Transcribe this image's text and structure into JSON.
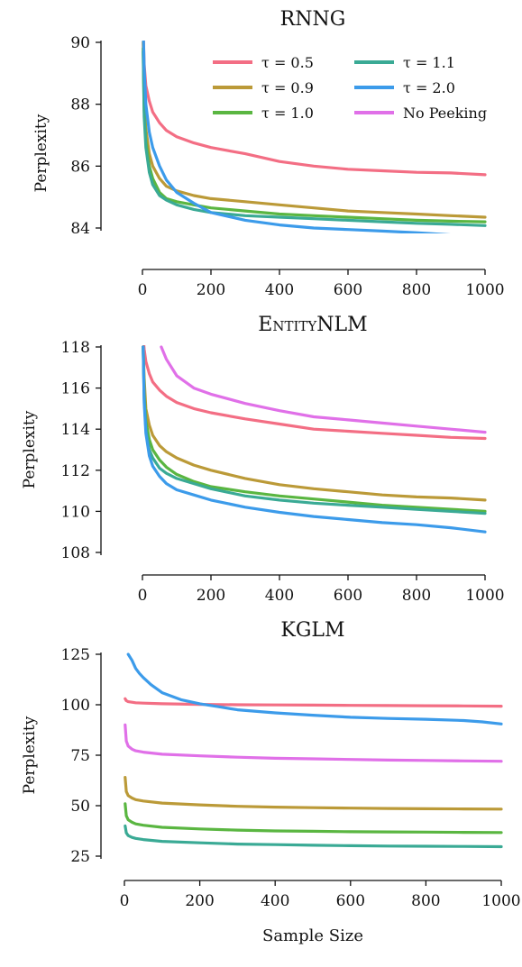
{
  "chart_data": [
    {
      "type": "line",
      "title": "RNNG",
      "ylabel": "Perplexity",
      "xlabel": "",
      "xlim": [
        0,
        1000
      ],
      "ylim": [
        84,
        90
      ],
      "xticks": [
        "0",
        "200",
        "400",
        "600",
        "800",
        "1000"
      ],
      "yticks": [
        "84",
        "86",
        "88",
        "90"
      ],
      "legend": {
        "placement": "top-right",
        "entries": [
          "τ = 0.5",
          "τ = 0.9",
          "τ = 1.0",
          "τ = 1.1",
          "τ = 2.0",
          "No Peeking"
        ]
      },
      "series": [
        {
          "name": "τ = 0.5",
          "color": "#f36e84",
          "x": [
            2,
            5,
            10,
            20,
            30,
            50,
            70,
            100,
            150,
            200,
            300,
            400,
            500,
            600,
            700,
            800,
            900,
            1000
          ],
          "y": [
            90.5,
            89.3,
            88.6,
            88.1,
            87.75,
            87.4,
            87.15,
            86.95,
            86.75,
            86.6,
            86.4,
            86.15,
            86.0,
            85.9,
            85.85,
            85.8,
            85.78,
            85.72
          ]
        },
        {
          "name": "τ = 0.9",
          "color": "#bb9a38",
          "x": [
            2,
            5,
            10,
            20,
            30,
            50,
            70,
            100,
            150,
            200,
            300,
            400,
            500,
            600,
            700,
            800,
            900,
            1000
          ],
          "y": [
            90.0,
            88.1,
            87.2,
            86.4,
            86.0,
            85.6,
            85.35,
            85.2,
            85.05,
            84.95,
            84.85,
            84.75,
            84.65,
            84.55,
            84.5,
            84.45,
            84.4,
            84.35
          ]
        },
        {
          "name": "τ = 1.0",
          "color": "#5ab641",
          "x": [
            2,
            5,
            10,
            20,
            30,
            50,
            70,
            100,
            150,
            200,
            300,
            400,
            500,
            600,
            700,
            800,
            900,
            1000
          ],
          "y": [
            89.8,
            87.8,
            86.8,
            86.0,
            85.6,
            85.15,
            84.95,
            84.85,
            84.75,
            84.65,
            84.55,
            84.45,
            84.4,
            84.35,
            84.3,
            84.25,
            84.22,
            84.2
          ]
        },
        {
          "name": "τ = 1.1",
          "color": "#3aaa95",
          "x": [
            2,
            5,
            10,
            20,
            30,
            50,
            70,
            100,
            150,
            200,
            300,
            400,
            500,
            600,
            700,
            800,
            900,
            1000
          ],
          "y": [
            89.7,
            87.6,
            86.6,
            85.8,
            85.4,
            85.05,
            84.9,
            84.75,
            84.6,
            84.5,
            84.4,
            84.35,
            84.3,
            84.25,
            84.2,
            84.15,
            84.12,
            84.08
          ]
        },
        {
          "name": "τ = 2.0",
          "color": "#3c9bea",
          "x": [
            2,
            5,
            10,
            20,
            30,
            50,
            70,
            100,
            150,
            200,
            300,
            400,
            500,
            600,
            700,
            800,
            900,
            1000
          ],
          "y": [
            90.5,
            89.2,
            88.0,
            87.1,
            86.6,
            86.0,
            85.55,
            85.15,
            84.8,
            84.5,
            84.25,
            84.1,
            84.0,
            83.95,
            83.9,
            83.85,
            83.78,
            83.75
          ]
        }
      ]
    },
    {
      "type": "line",
      "title": "EntityNLM",
      "ylabel": "Perplexity",
      "xlabel": "",
      "xlim": [
        0,
        1000
      ],
      "ylim": [
        108,
        118
      ],
      "xticks": [
        "0",
        "200",
        "400",
        "600",
        "800",
        "1000"
      ],
      "yticks": [
        "108",
        "110",
        "112",
        "114",
        "116",
        "118"
      ],
      "series": [
        {
          "name": "τ = 0.5",
          "color": "#f36e84",
          "x": [
            2,
            5,
            10,
            20,
            30,
            50,
            70,
            100,
            150,
            200,
            300,
            400,
            500,
            600,
            700,
            800,
            900,
            1000
          ],
          "y": [
            118.5,
            117.9,
            117.3,
            116.7,
            116.3,
            115.9,
            115.6,
            115.3,
            115.0,
            114.8,
            114.5,
            114.25,
            114.0,
            113.9,
            113.8,
            113.7,
            113.6,
            113.55
          ]
        },
        {
          "name": "τ = 0.9",
          "color": "#bb9a38",
          "x": [
            2,
            5,
            10,
            20,
            30,
            50,
            70,
            100,
            150,
            200,
            300,
            400,
            500,
            600,
            700,
            800,
            900,
            1000
          ],
          "y": [
            118.0,
            116.5,
            115.0,
            114.2,
            113.7,
            113.2,
            112.9,
            112.6,
            112.25,
            112.0,
            111.6,
            111.3,
            111.1,
            110.95,
            110.8,
            110.7,
            110.65,
            110.55
          ]
        },
        {
          "name": "τ = 1.0",
          "color": "#5ab641",
          "x": [
            2,
            5,
            10,
            20,
            30,
            50,
            70,
            100,
            150,
            200,
            300,
            400,
            500,
            600,
            700,
            800,
            900,
            1000
          ],
          "y": [
            118.0,
            115.8,
            114.4,
            113.5,
            113.0,
            112.5,
            112.15,
            111.8,
            111.45,
            111.2,
            110.95,
            110.75,
            110.6,
            110.45,
            110.3,
            110.2,
            110.1,
            110.0
          ]
        },
        {
          "name": "τ = 1.1",
          "color": "#3aaa95",
          "x": [
            2,
            5,
            10,
            20,
            30,
            50,
            70,
            100,
            150,
            200,
            300,
            400,
            500,
            600,
            700,
            800,
            900,
            1000
          ],
          "y": [
            118.0,
            115.5,
            114.0,
            113.0,
            112.6,
            112.1,
            111.85,
            111.6,
            111.35,
            111.1,
            110.75,
            110.55,
            110.4,
            110.3,
            110.2,
            110.1,
            110.0,
            109.9
          ]
        },
        {
          "name": "τ = 2.0",
          "color": "#3c9bea",
          "x": [
            2,
            5,
            10,
            20,
            30,
            50,
            70,
            100,
            150,
            200,
            300,
            400,
            500,
            600,
            700,
            800,
            900,
            1000
          ],
          "y": [
            118.0,
            115.3,
            113.8,
            112.7,
            112.2,
            111.7,
            111.35,
            111.05,
            110.8,
            110.55,
            110.2,
            109.95,
            109.75,
            109.6,
            109.45,
            109.35,
            109.2,
            109.0
          ]
        },
        {
          "name": "No Peeking",
          "color": "#e070e8",
          "x": [
            55,
            70,
            100,
            150,
            200,
            300,
            400,
            500,
            600,
            700,
            800,
            900,
            1000
          ],
          "y": [
            118.0,
            117.4,
            116.6,
            116.0,
            115.7,
            115.25,
            114.9,
            114.6,
            114.45,
            114.3,
            114.15,
            114.0,
            113.85
          ]
        }
      ]
    },
    {
      "type": "line",
      "title": "KGLM",
      "ylabel": "Perplexity",
      "xlabel": "Sample Size",
      "xlim": [
        0,
        1000
      ],
      "ylim": [
        25,
        125
      ],
      "xticks": [
        "0",
        "200",
        "400",
        "600",
        "800",
        "1000"
      ],
      "yticks": [
        "25",
        "50",
        "75",
        "100",
        "125"
      ],
      "series": [
        {
          "name": "τ = 0.5",
          "color": "#f36e84",
          "x": [
            2,
            5,
            10,
            30,
            50,
            100,
            200,
            300,
            400,
            500,
            600,
            700,
            800,
            900,
            1000
          ],
          "y": [
            103.0,
            102.0,
            101.5,
            101.0,
            100.8,
            100.5,
            100.2,
            100.0,
            99.9,
            99.8,
            99.7,
            99.6,
            99.5,
            99.4,
            99.3
          ]
        },
        {
          "name": "τ = 0.9",
          "color": "#bb9a38",
          "x": [
            2,
            5,
            10,
            20,
            30,
            50,
            100,
            200,
            300,
            400,
            500,
            600,
            700,
            800,
            900,
            1000
          ],
          "y": [
            64.0,
            57.0,
            55.0,
            53.8,
            53.0,
            52.3,
            51.3,
            50.4,
            49.7,
            49.3,
            49.0,
            48.8,
            48.6,
            48.5,
            48.4,
            48.3
          ]
        },
        {
          "name": "τ = 1.0",
          "color": "#5ab641",
          "x": [
            2,
            5,
            10,
            20,
            30,
            50,
            100,
            200,
            300,
            400,
            500,
            600,
            700,
            800,
            900,
            1000
          ],
          "y": [
            51.0,
            45.0,
            43.0,
            41.8,
            41.0,
            40.3,
            39.3,
            38.5,
            37.9,
            37.5,
            37.3,
            37.1,
            37.0,
            36.9,
            36.8,
            36.7
          ]
        },
        {
          "name": "τ = 1.1",
          "color": "#3aaa95",
          "x": [
            2,
            5,
            10,
            20,
            30,
            50,
            100,
            200,
            300,
            400,
            500,
            600,
            700,
            800,
            900,
            1000
          ],
          "y": [
            40.0,
            36.5,
            35.2,
            34.3,
            33.8,
            33.2,
            32.3,
            31.6,
            31.0,
            30.7,
            30.4,
            30.2,
            30.0,
            29.9,
            29.8,
            29.7
          ]
        },
        {
          "name": "τ = 2.0",
          "color": "#3c9bea",
          "x": [
            10,
            20,
            30,
            40,
            50,
            70,
            100,
            150,
            200,
            250,
            300,
            400,
            500,
            600,
            700,
            800,
            900,
            950,
            1000
          ],
          "y": [
            125.0,
            122.0,
            118.0,
            115.5,
            113.5,
            110.0,
            106.0,
            102.5,
            100.5,
            99.0,
            97.5,
            96.0,
            94.8,
            93.8,
            93.2,
            92.8,
            92.2,
            91.5,
            90.5
          ]
        },
        {
          "name": "No Peeking",
          "color": "#e070e8",
          "x": [
            2,
            5,
            10,
            20,
            30,
            50,
            100,
            200,
            300,
            400,
            500,
            600,
            700,
            800,
            900,
            1000
          ],
          "y": [
            90.0,
            82.0,
            79.5,
            78.0,
            77.2,
            76.5,
            75.5,
            74.7,
            74.0,
            73.5,
            73.2,
            72.9,
            72.6,
            72.4,
            72.2,
            72.0
          ]
        }
      ]
    }
  ]
}
